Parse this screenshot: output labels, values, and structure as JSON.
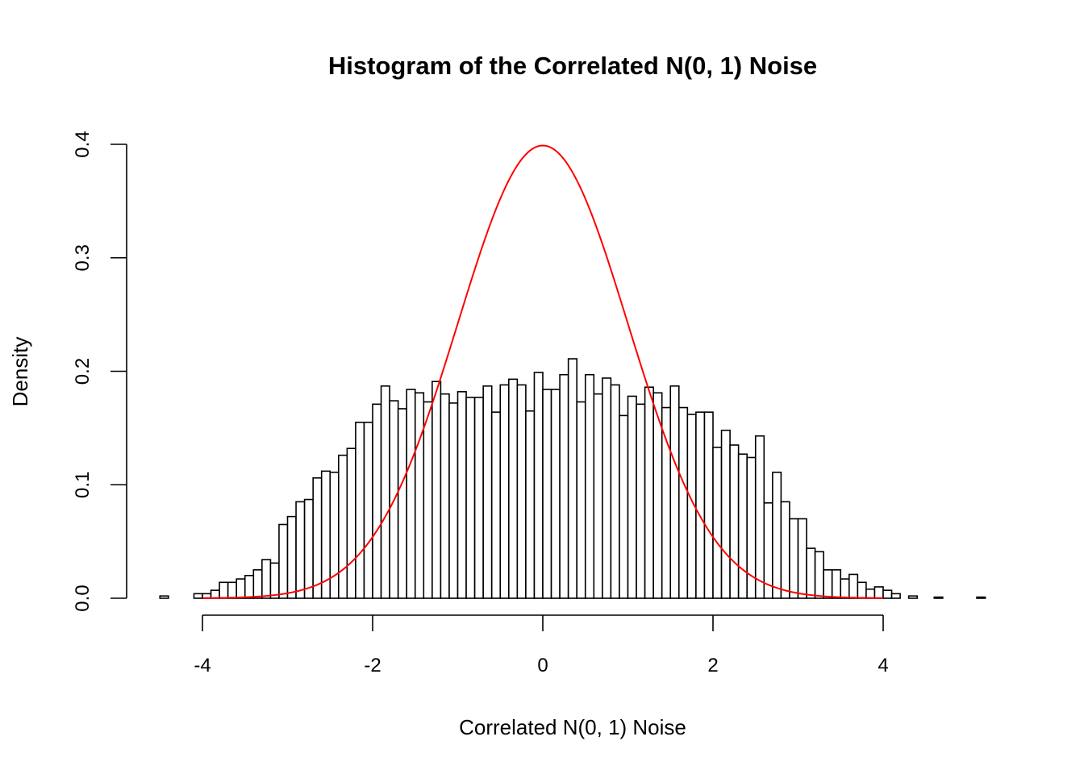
{
  "chart_data": {
    "type": "bar",
    "subtype": "histogram",
    "title": "Histogram of the Correlated N(0, 1) Noise",
    "xlabel": "Correlated N(0, 1) Noise",
    "ylabel": "Density",
    "xlim": [
      -4.5,
      5.2
    ],
    "ylim": [
      0,
      0.4
    ],
    "xticks": [
      -4,
      -2,
      0,
      2,
      4
    ],
    "xtick_labels": [
      "-4",
      "-2",
      "0",
      "2",
      "4"
    ],
    "yticks": [
      0,
      0.1,
      0.2,
      0.3,
      0.4
    ],
    "ytick_labels": [
      "0.0",
      "0.1",
      "0.2",
      "0.3",
      "0.4"
    ],
    "grid": false,
    "bin_start": -4.5,
    "bin_width": 0.1,
    "densities": [
      0.002,
      0,
      0,
      0,
      0.004,
      0.004,
      0.007,
      0.014,
      0.014,
      0.017,
      0.02,
      0.025,
      0.034,
      0.031,
      0.065,
      0.072,
      0.085,
      0.087,
      0.106,
      0.112,
      0.111,
      0.126,
      0.132,
      0.155,
      0.155,
      0.171,
      0.187,
      0.174,
      0.167,
      0.184,
      0.181,
      0.173,
      0.191,
      0.18,
      0.172,
      0.182,
      0.177,
      0.177,
      0.187,
      0.164,
      0.188,
      0.193,
      0.188,
      0.165,
      0.199,
      0.184,
      0.184,
      0.197,
      0.211,
      0.173,
      0.197,
      0.18,
      0.194,
      0.188,
      0.161,
      0.178,
      0.171,
      0.186,
      0.181,
      0.168,
      0.187,
      0.168,
      0.162,
      0.164,
      0.164,
      0.133,
      0.148,
      0.135,
      0.127,
      0.124,
      0.143,
      0.084,
      0.111,
      0.085,
      0.07,
      0.07,
      0.044,
      0.041,
      0.025,
      0.025,
      0.017,
      0.021,
      0.014,
      0.008,
      0.01,
      0.007,
      0.004,
      0,
      0.002,
      0,
      0,
      0.001,
      0,
      0,
      0,
      0,
      0.001
    ],
    "bar_fill": "#ffffff",
    "bar_stroke": "#000000",
    "overlay_curve": {
      "type": "normal-density",
      "mean": 0,
      "sd": 1,
      "x_range": [
        -4,
        4
      ],
      "color": "#ff0000"
    }
  }
}
